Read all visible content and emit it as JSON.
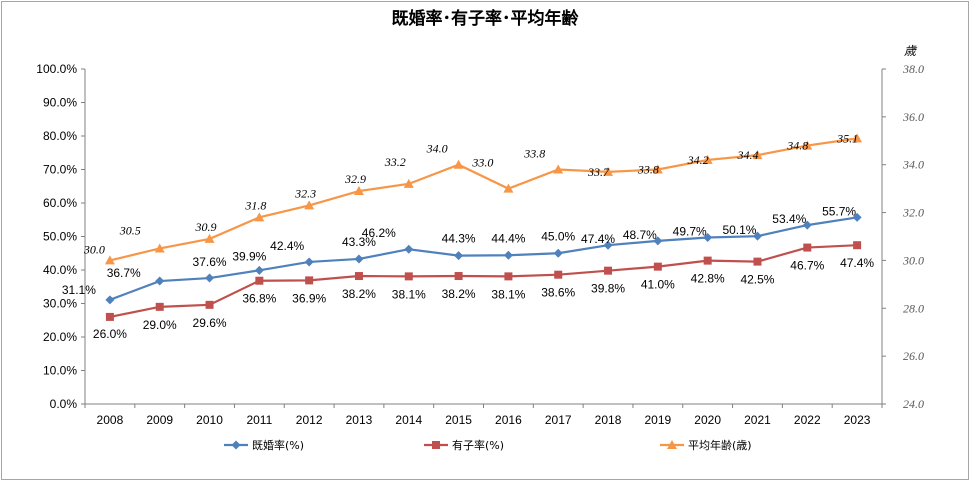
{
  "chart_data": {
    "type": "line",
    "title": "既婚率･有子率･平均年齢",
    "y2label": "歳",
    "categories": [
      "2008",
      "2009",
      "2010",
      "2011",
      "2012",
      "2013",
      "2014",
      "2015",
      "2016",
      "2017",
      "2018",
      "2019",
      "2020",
      "2021",
      "2022",
      "2023"
    ],
    "ylim": [
      0,
      100
    ],
    "yticks": [
      "0.0%",
      "10.0%",
      "20.0%",
      "30.0%",
      "40.0%",
      "50.0%",
      "60.0%",
      "70.0%",
      "80.0%",
      "90.0%",
      "100.0%"
    ],
    "y2lim": [
      24,
      38
    ],
    "y2ticks": [
      "24.0",
      "26.0",
      "28.0",
      "30.0",
      "32.0",
      "34.0",
      "36.0",
      "38.0"
    ],
    "grid": false,
    "legend_position": "bottom",
    "series": [
      {
        "name": "既婚率(%)",
        "axis": "left",
        "color": "#4f81bd",
        "marker": "diamond",
        "values": [
          31.1,
          36.7,
          37.6,
          39.9,
          42.4,
          43.3,
          46.2,
          44.3,
          44.4,
          45.0,
          47.4,
          48.7,
          49.7,
          50.1,
          53.4,
          55.7
        ],
        "labels": [
          "31.1%",
          "36.7%",
          "37.6%",
          "39.9%",
          "42.4%",
          "43.3%",
          "46.2%",
          "44.3%",
          "44.4%",
          "45.0%",
          "47.4%",
          "48.7%",
          "49.7%",
          "50.1%",
          "53.4%",
          "55.7%"
        ]
      },
      {
        "name": "有子率(%)",
        "axis": "left",
        "color": "#c0504d",
        "marker": "square",
        "values": [
          26.0,
          29.0,
          29.6,
          36.8,
          36.9,
          38.2,
          38.1,
          38.2,
          38.1,
          38.6,
          39.8,
          41.0,
          42.8,
          42.5,
          46.7,
          47.4
        ],
        "labels": [
          "26.0%",
          "29.0%",
          "29.6%",
          "36.8%",
          "36.9%",
          "38.2%",
          "38.1%",
          "38.2%",
          "38.1%",
          "38.6%",
          "39.8%",
          "41.0%",
          "42.8%",
          "42.5%",
          "46.7%",
          "47.4%"
        ]
      },
      {
        "name": "平均年齢(歳)",
        "axis": "right",
        "color": "#f79646",
        "marker": "triangle",
        "values": [
          30.0,
          30.5,
          30.9,
          31.8,
          32.3,
          32.9,
          33.2,
          34.0,
          33.0,
          33.8,
          33.7,
          33.8,
          34.2,
          34.4,
          34.8,
          35.1
        ],
        "labels": [
          "30.0",
          "30.5",
          "30.9",
          "31.8",
          "32.3",
          "32.9",
          "33.2",
          "34.0",
          "33.0",
          "33.8",
          "33.7",
          "33.8",
          "34.2",
          "34.4",
          "34.8",
          "35.1"
        ]
      }
    ]
  }
}
